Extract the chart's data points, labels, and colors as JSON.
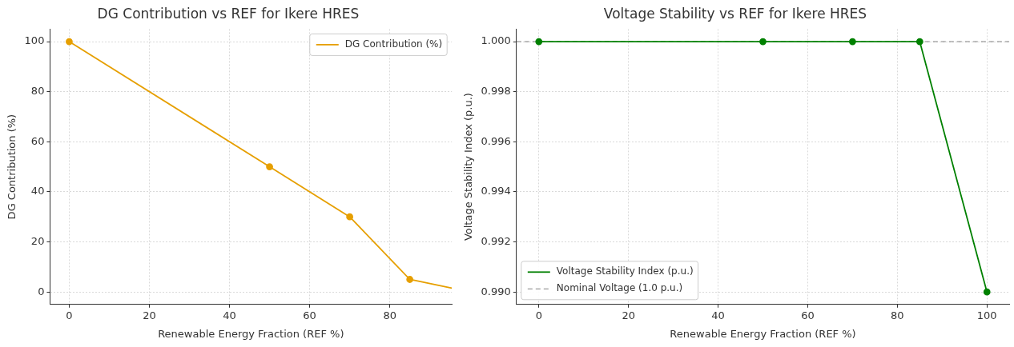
{
  "chart_data": [
    {
      "type": "line",
      "title": "DG Contribution vs REF for Ikere HRES",
      "xlabel": "Renewable Energy Fraction (REF %)",
      "ylabel": "DG Contribution (%)",
      "series": [
        {
          "name": "DG Contribution (%)",
          "color": "#e69f00",
          "x": [
            0,
            50,
            70,
            85,
            95.5
          ],
          "values": [
            100,
            50,
            30,
            5,
            1.5
          ]
        }
      ],
      "xlim": [
        -4.8,
        95.5
      ],
      "xticks": [
        0,
        20,
        40,
        60,
        80
      ],
      "ylim": [
        -5,
        105
      ],
      "yticks": [
        0,
        20,
        40,
        60,
        80,
        100
      ],
      "grid": true,
      "legend": "top right",
      "marker": "circle",
      "line_style": "solid"
    },
    {
      "type": "line",
      "title": "Voltage Stability vs REF for Ikere HRES",
      "xlabel": "Renewable Energy Fraction (REF %)",
      "ylabel": "Voltage Stability Index (p.u.)",
      "series": [
        {
          "name": "Voltage Stability Index (p.u.)",
          "color": "#008000",
          "x": [
            0,
            50,
            70,
            85,
            100
          ],
          "values": [
            1.0,
            1.0,
            1.0,
            1.0,
            0.99
          ]
        }
      ],
      "ref_lines": [
        {
          "axis": "y",
          "value": 1.0,
          "label": "Nominal Voltage (1.0 p.u.)",
          "color": "#808080",
          "line_style": "dashed"
        }
      ],
      "xlim": [
        -5,
        105
      ],
      "xticks": [
        0,
        20,
        40,
        60,
        80,
        100
      ],
      "ylim": [
        0.9895,
        1.0005
      ],
      "yticks": [
        {
          "value": 0.99,
          "label": "0.990"
        },
        {
          "value": 0.992,
          "label": "0.992"
        },
        {
          "value": 0.994,
          "label": "0.994"
        },
        {
          "value": 0.996,
          "label": "0.996"
        },
        {
          "value": 0.998,
          "label": "0.998"
        },
        {
          "value": 1.0,
          "label": "1.000"
        }
      ],
      "grid": true,
      "legend": "bottom left",
      "marker": "circle",
      "line_style": "solid"
    }
  ]
}
